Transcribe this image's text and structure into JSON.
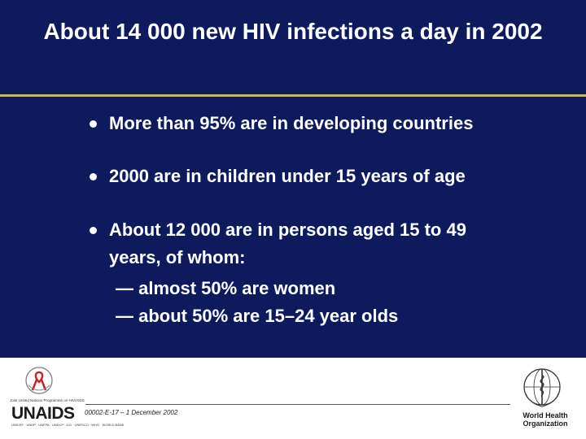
{
  "slide": {
    "title": "About 14 000 new HIV infections a day in 2002",
    "bullets": [
      "More than 95% are in developing countries",
      "2000 are in children under 15 years of age",
      "About 12 000 are in persons aged 15 to 49",
      "years, of whom:"
    ],
    "sub_bullets": [
      "— almost 50% are women",
      "— about 50% are 15–24 year olds"
    ]
  },
  "footer": {
    "code": "00002-E-17 – 1 December 2002",
    "unaids_name": "UNAIDS",
    "unaids_tagline": "Joint United Nations Programme on HIV/AIDS",
    "unaids_partners": "UNICEF · UNDP · UNFPA · UNDCP · ILO · UNESCO · WHO · WORLD BANK",
    "who_name": "World Health Organization"
  },
  "colors": {
    "background": "#0d1a5c",
    "rule": "#c8b27a",
    "text": "#ffffff"
  }
}
